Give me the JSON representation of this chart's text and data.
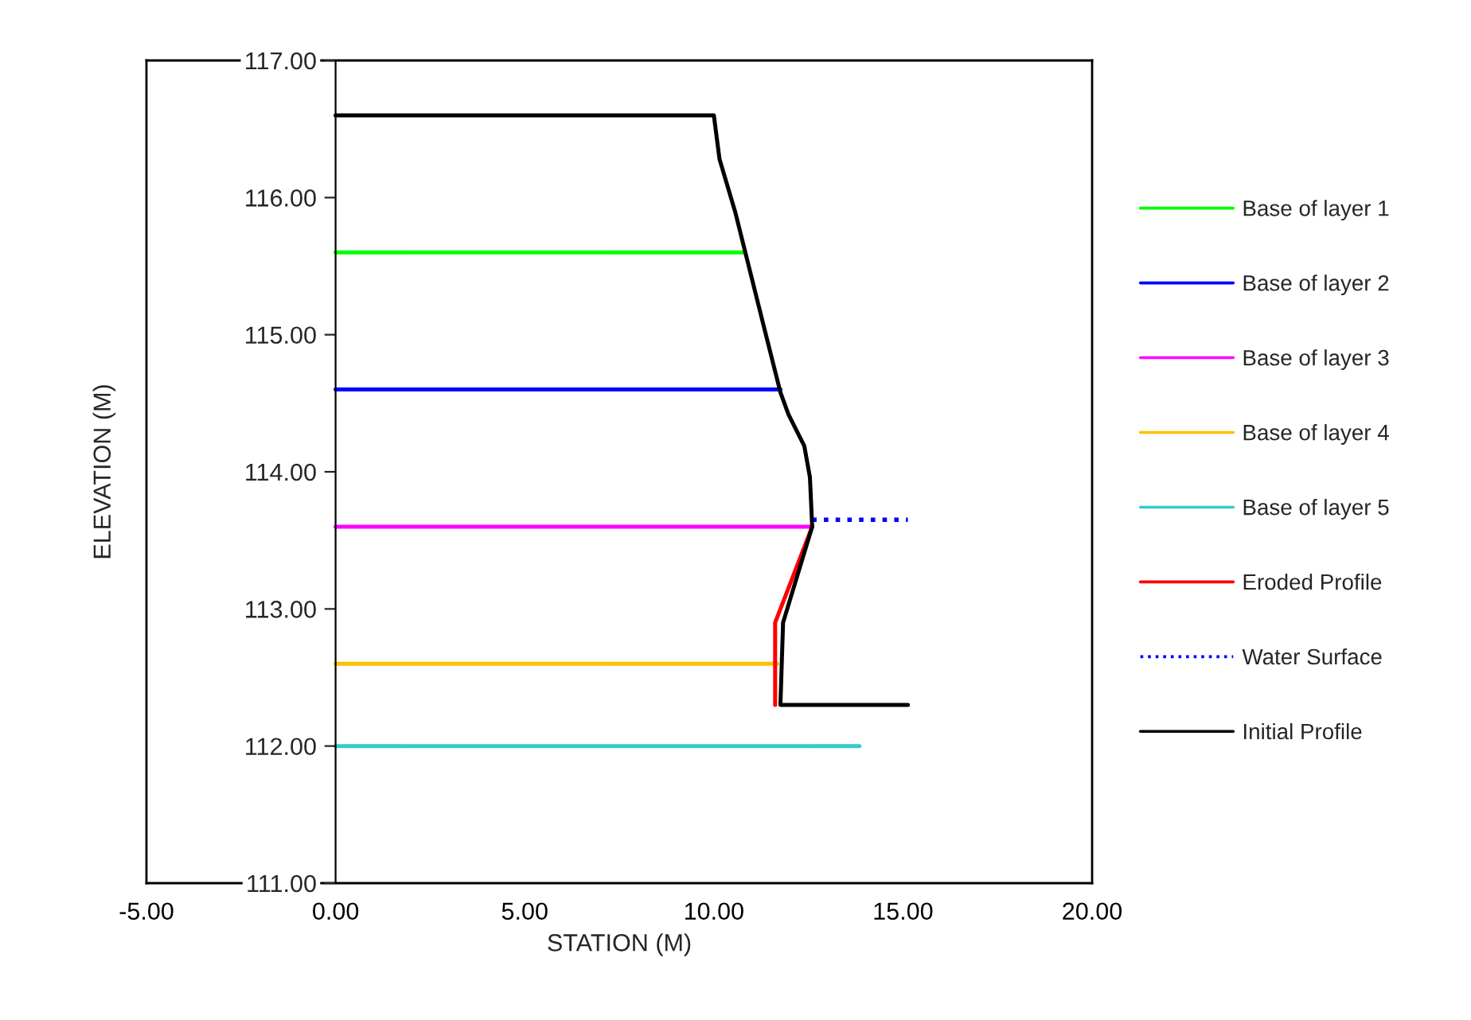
{
  "chart_data": {
    "type": "line",
    "xlabel": "STATION (M)",
    "ylabel": "ELEVATION (M)",
    "xlim": [
      -5,
      20
    ],
    "ylim": [
      111,
      117
    ],
    "xticks": [
      {
        "value": -5,
        "label": "-5.00"
      },
      {
        "value": 0,
        "label": "0.00"
      },
      {
        "value": 5,
        "label": "5.00"
      },
      {
        "value": 10,
        "label": "10.00"
      },
      {
        "value": 15,
        "label": "15.00"
      },
      {
        "value": 20,
        "label": "20.00"
      }
    ],
    "yticks": [
      {
        "value": 111,
        "label": "111.00"
      },
      {
        "value": 112,
        "label": "112.00"
      },
      {
        "value": 113,
        "label": "113.00"
      },
      {
        "value": 114,
        "label": "114.00"
      },
      {
        "value": 115,
        "label": "115.00"
      },
      {
        "value": 116,
        "label": "116.00"
      },
      {
        "value": 117,
        "label": "117.00"
      }
    ],
    "grid": false,
    "legend": "right",
    "marker": "none",
    "series": [
      {
        "name": "Base of layer 1",
        "color": "#00ff00",
        "x": [
          0,
          10.8
        ],
        "values": [
          115.6,
          115.6
        ]
      },
      {
        "name": "Base of layer 2",
        "color": "#0000ff",
        "x": [
          0,
          11.76
        ],
        "values": [
          114.6,
          114.6
        ]
      },
      {
        "name": "Base of layer 3",
        "color": "#ff00ff",
        "x": [
          0,
          12.6
        ],
        "values": [
          113.6,
          113.6
        ]
      },
      {
        "name": "Base of layer 4",
        "color": "#ffc000",
        "x": [
          0,
          11.68
        ],
        "values": [
          112.6,
          112.6
        ]
      },
      {
        "name": "Base of layer 5",
        "color": "#33cccc",
        "x": [
          0,
          13.85
        ],
        "values": [
          112.0,
          112.0
        ]
      },
      {
        "name": "Eroded Profile",
        "color": "#ff0000",
        "x": [
          12.6,
          11.62,
          11.62
        ],
        "values": [
          113.6,
          112.9,
          112.3
        ]
      },
      {
        "name": "Water Surface",
        "color": "#0000ff",
        "line_style": "dotted",
        "x": [
          12.6,
          15.13
        ],
        "values": [
          113.65,
          113.65
        ]
      },
      {
        "name": "Initial Profile",
        "color": "#000000",
        "x": [
          0,
          10.0,
          10.15,
          10.57,
          11.34,
          11.76,
          11.97,
          12.39,
          12.54,
          12.6,
          11.83,
          11.76,
          15.13
        ],
        "values": [
          116.6,
          116.6,
          116.28,
          115.89,
          115.04,
          114.58,
          114.42,
          114.19,
          113.96,
          113.6,
          112.9,
          112.3,
          112.3
        ]
      }
    ]
  }
}
